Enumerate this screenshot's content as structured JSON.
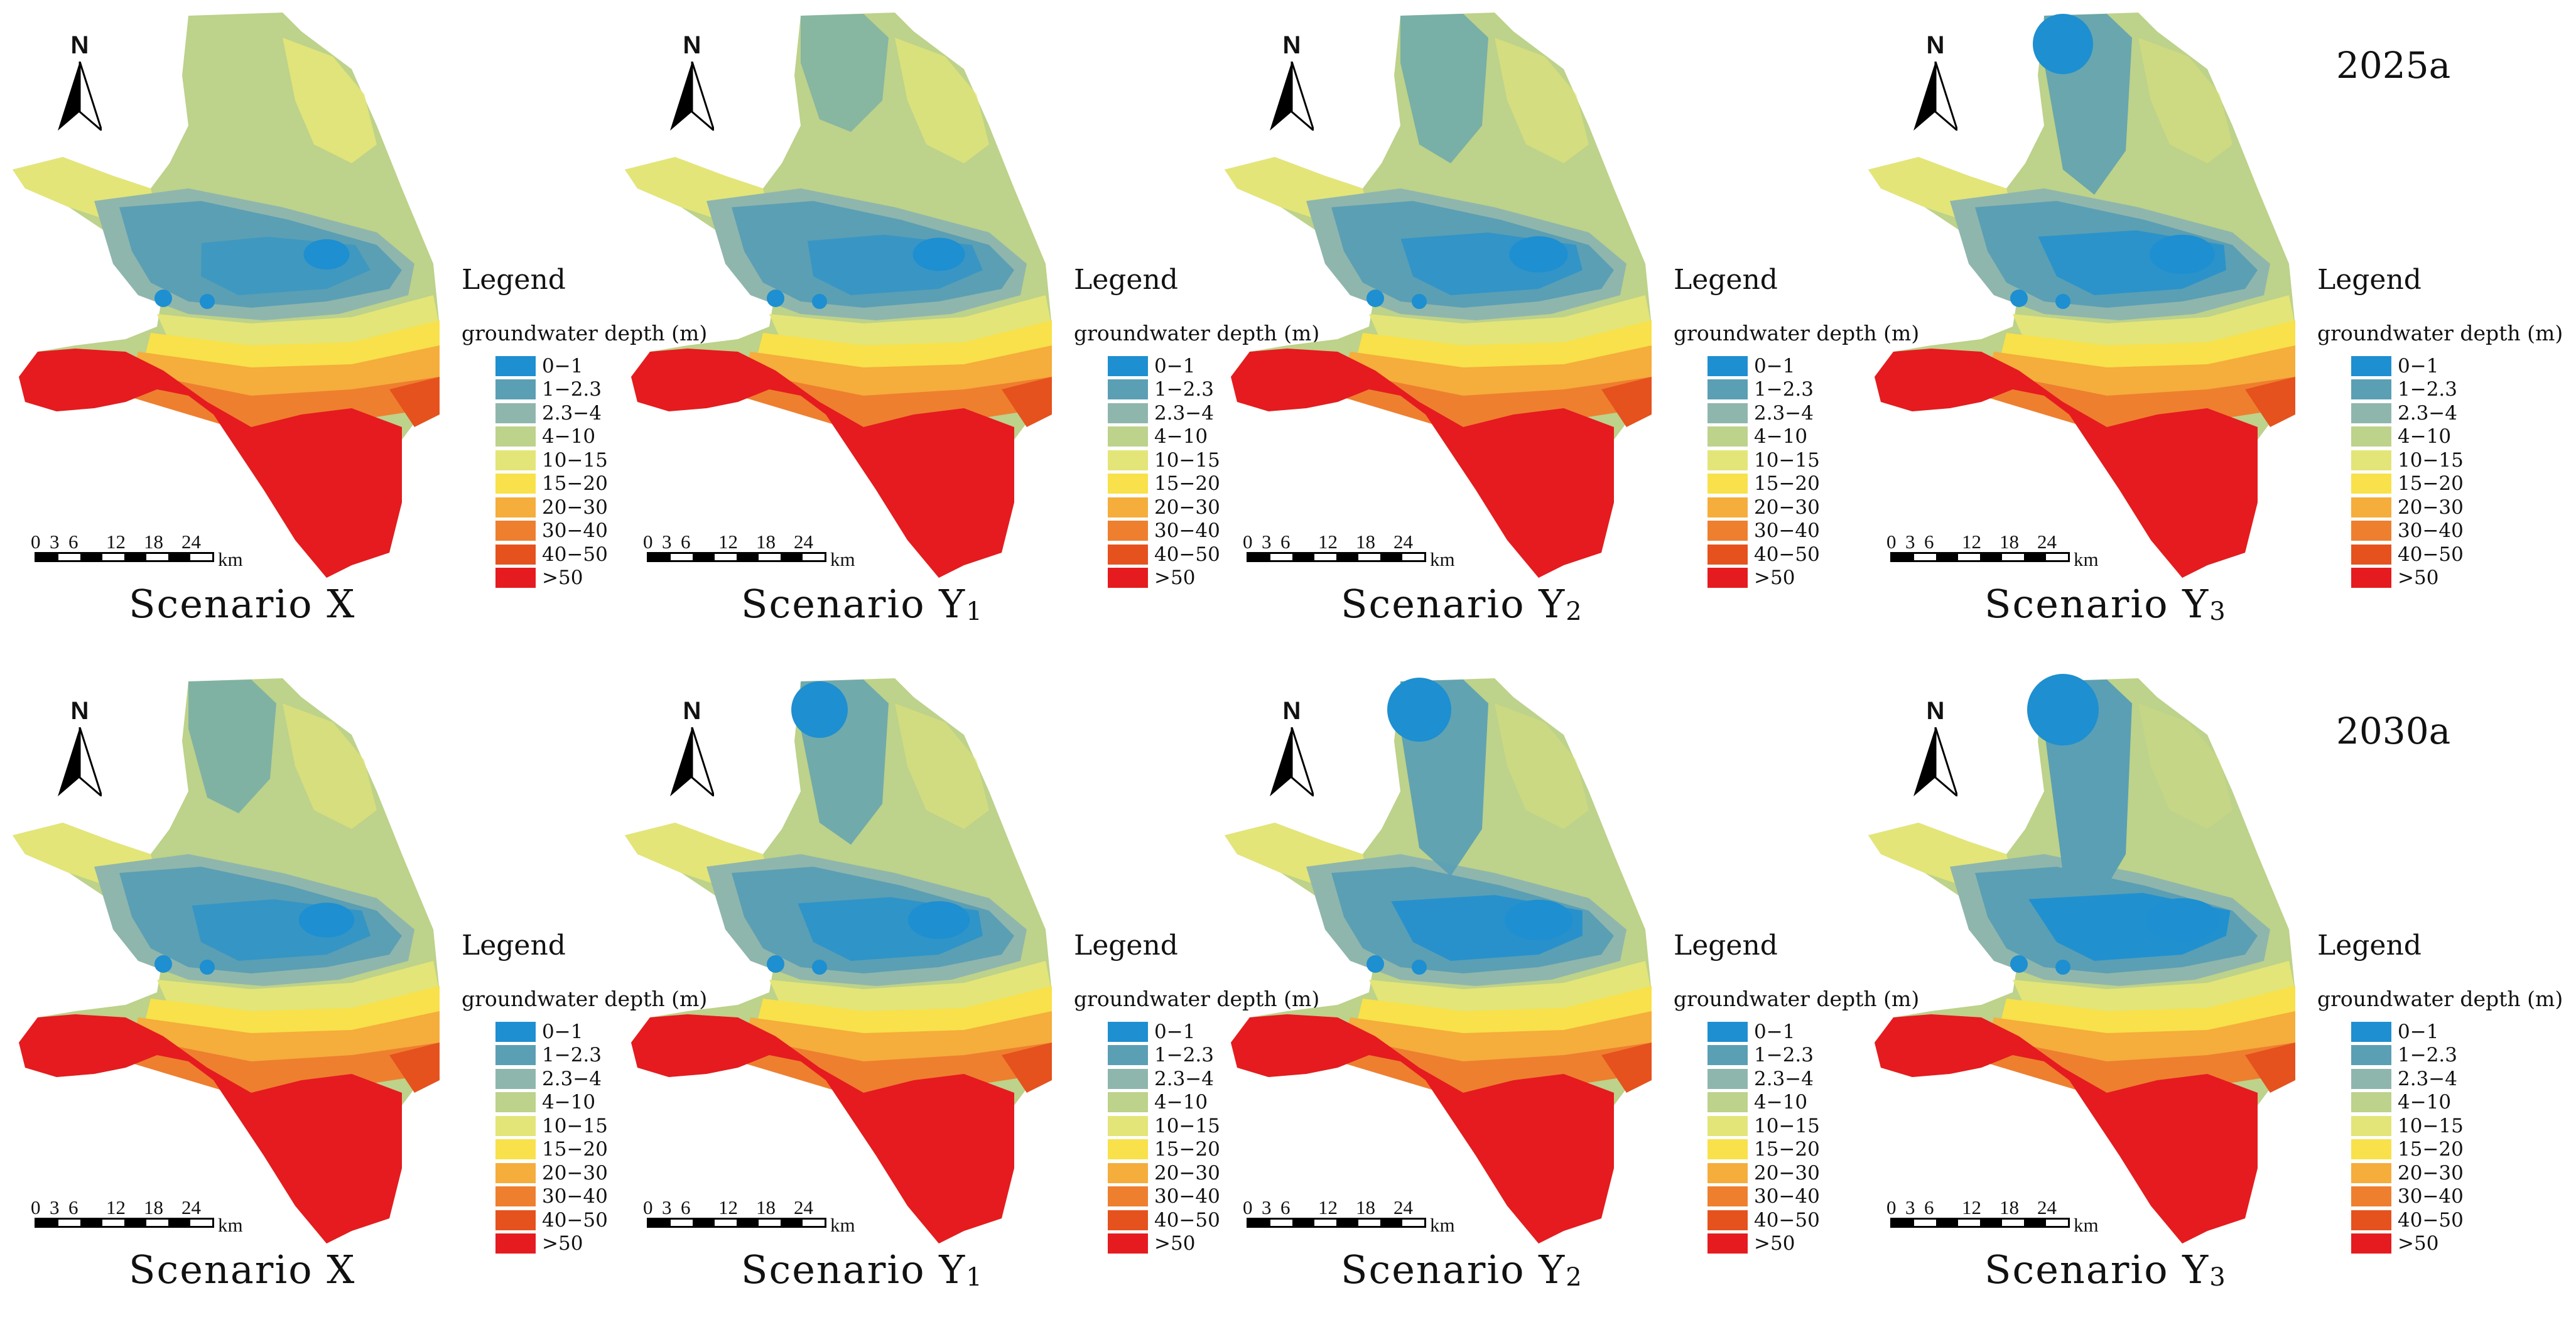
{
  "legend": {
    "title": "Legend",
    "subtitle": "groundwater depth (m)",
    "classes": [
      {
        "label": "0−1",
        "color": "#1e8fd0"
      },
      {
        "label": "1−2.3",
        "color": "#5b9fb4"
      },
      {
        "label": "2.3−4",
        "color": "#8fb6ad"
      },
      {
        "label": "4−10",
        "color": "#bdd28a"
      },
      {
        "label": "10−15",
        "color": "#e3e578"
      },
      {
        "label": "15−20",
        "color": "#f8e14a"
      },
      {
        "label": "20−30",
        "color": "#f5ad3c"
      },
      {
        "label": "30−40",
        "color": "#ee7f2f"
      },
      {
        "label": "40−50",
        "color": "#e5521d"
      },
      {
        "label": ">50",
        "color": "#e51b1f"
      }
    ]
  },
  "north_label": "N",
  "scalebar": {
    "ticks": [
      "0",
      "3",
      "6",
      "12",
      "18",
      "24"
    ],
    "unit": "km"
  },
  "years": [
    "2025a",
    "2030a"
  ],
  "scenarios": [
    {
      "name": "Scenario X",
      "sub": ""
    },
    {
      "name": "Scenario Y",
      "sub": "1"
    },
    {
      "name": "Scenario Y",
      "sub": "2"
    },
    {
      "name": "Scenario Y",
      "sub": "3"
    }
  ]
}
